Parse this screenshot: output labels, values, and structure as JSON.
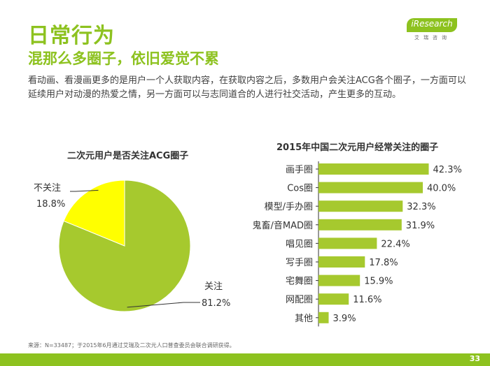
{
  "header": {
    "title": "日常行为",
    "subtitle": "混那么多圈子，依旧爱觉不累",
    "intro": "看动画、看漫画更多的是用户一个人获取内容，在获取内容之后，多数用户会关注ACG各个圈子，一方面可以延续用户对动漫的热爱之情，另一方面可以与志同道合的人进行社交活动，产生更多的互动。"
  },
  "logo": {
    "name": "iResearch",
    "cn": "艾瑞咨询"
  },
  "footer": {
    "source": "来源：N=33487；于2015年6月通过艾瑞及二次元人口普查委员会联合调研获得。",
    "page": "33"
  },
  "colors": {
    "green": "#a6c92e",
    "yellow": "#ffff00",
    "brand": "#8dc21f"
  },
  "chart_data": [
    {
      "type": "pie",
      "title": "二次元用户是否关注ACG圈子",
      "slices": [
        {
          "label": "关注",
          "value": 81.2,
          "value_label": "81.2%",
          "color": "#a6c92e"
        },
        {
          "label": "不关注",
          "value": 18.8,
          "value_label": "18.8%",
          "color": "#ffff00"
        }
      ]
    },
    {
      "type": "bar",
      "orientation": "horizontal",
      "title": "2015年中国二次元用户经常关注的圈子",
      "categories": [
        "画手圈",
        "Cos圈",
        "模型/手办圈",
        "鬼畜/音MAD圈",
        "唱见圈",
        "写手圈",
        "宅舞圈",
        "网配圈",
        "其他"
      ],
      "values": [
        42.3,
        40.0,
        32.3,
        31.9,
        22.4,
        17.8,
        15.9,
        11.6,
        3.9
      ],
      "value_labels": [
        "42.3%",
        "40.0%",
        "32.3%",
        "31.9%",
        "22.4%",
        "17.8%",
        "15.9%",
        "11.6%",
        "3.9%"
      ],
      "xlim": [
        0,
        45
      ],
      "color": "#a6c92e"
    }
  ]
}
